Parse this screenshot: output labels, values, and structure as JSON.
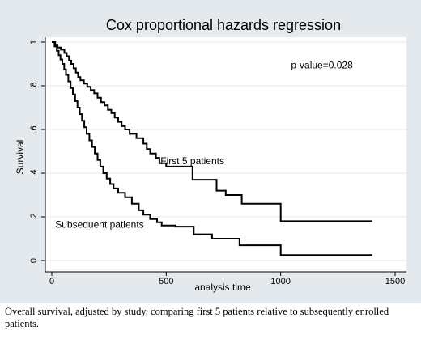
{
  "chart_data": {
    "type": "line",
    "title": "Cox proportional hazards regression",
    "xlabel": "analysis time",
    "ylabel": "Survival",
    "xlim": [
      0,
      1500
    ],
    "ylim": [
      0,
      1
    ],
    "x_ticks": [
      0,
      500,
      1000,
      1500
    ],
    "x_tick_labels": [
      "0",
      "500",
      "1000",
      "1500"
    ],
    "y_ticks": [
      0,
      0.2,
      0.4,
      0.6,
      0.8,
      1
    ],
    "y_tick_labels": [
      "0",
      ".2",
      ".4",
      ".6",
      ".8",
      "1"
    ],
    "grid": "horizontal",
    "annotation": "p-value=0.028",
    "series": [
      {
        "name": "First 5 patients",
        "step": [
          [
            0,
            1.0
          ],
          [
            15,
            0.985
          ],
          [
            25,
            0.975
          ],
          [
            40,
            0.965
          ],
          [
            55,
            0.95
          ],
          [
            65,
            0.935
          ],
          [
            75,
            0.915
          ],
          [
            85,
            0.9
          ],
          [
            95,
            0.88
          ],
          [
            105,
            0.86
          ],
          [
            115,
            0.84
          ],
          [
            125,
            0.825
          ],
          [
            140,
            0.81
          ],
          [
            155,
            0.795
          ],
          [
            170,
            0.78
          ],
          [
            185,
            0.765
          ],
          [
            200,
            0.745
          ],
          [
            215,
            0.725
          ],
          [
            230,
            0.71
          ],
          [
            245,
            0.69
          ],
          [
            260,
            0.675
          ],
          [
            275,
            0.655
          ],
          [
            290,
            0.635
          ],
          [
            305,
            0.615
          ],
          [
            320,
            0.6
          ],
          [
            340,
            0.58
          ],
          [
            370,
            0.56
          ],
          [
            400,
            0.535
          ],
          [
            415,
            0.51
          ],
          [
            430,
            0.49
          ],
          [
            455,
            0.47
          ],
          [
            470,
            0.445
          ],
          [
            500,
            0.43
          ],
          [
            615,
            0.37
          ],
          [
            720,
            0.32
          ],
          [
            760,
            0.3
          ],
          [
            830,
            0.26
          ],
          [
            1000,
            0.18
          ],
          [
            1400,
            0.18
          ]
        ]
      },
      {
        "name": "Subsequent patients",
        "step": [
          [
            0,
            1.0
          ],
          [
            12,
            0.98
          ],
          [
            22,
            0.96
          ],
          [
            30,
            0.94
          ],
          [
            38,
            0.92
          ],
          [
            46,
            0.9
          ],
          [
            54,
            0.875
          ],
          [
            62,
            0.85
          ],
          [
            72,
            0.82
          ],
          [
            82,
            0.79
          ],
          [
            92,
            0.76
          ],
          [
            102,
            0.73
          ],
          [
            112,
            0.7
          ],
          [
            122,
            0.67
          ],
          [
            132,
            0.64
          ],
          [
            142,
            0.61
          ],
          [
            152,
            0.58
          ],
          [
            164,
            0.55
          ],
          [
            176,
            0.52
          ],
          [
            188,
            0.49
          ],
          [
            200,
            0.46
          ],
          [
            212,
            0.43
          ],
          [
            225,
            0.4
          ],
          [
            240,
            0.375
          ],
          [
            255,
            0.35
          ],
          [
            270,
            0.33
          ],
          [
            290,
            0.31
          ],
          [
            320,
            0.29
          ],
          [
            350,
            0.26
          ],
          [
            380,
            0.23
          ],
          [
            400,
            0.21
          ],
          [
            430,
            0.19
          ],
          [
            460,
            0.175
          ],
          [
            480,
            0.16
          ],
          [
            540,
            0.155
          ],
          [
            620,
            0.12
          ],
          [
            700,
            0.1
          ],
          [
            820,
            0.07
          ],
          [
            1000,
            0.025
          ],
          [
            1400,
            0.025
          ]
        ]
      }
    ],
    "series_labels": [
      {
        "text": "First 5 patients",
        "x": 475,
        "y": 0.44
      },
      {
        "text": "Subsequent patients",
        "x": 15,
        "y": 0.15
      }
    ],
    "annotation_position": {
      "x": 1045,
      "y": 0.88
    }
  },
  "caption": "Overall survival, adjusted by study, comparing first 5 patients relative to subsequently enrolled patients."
}
